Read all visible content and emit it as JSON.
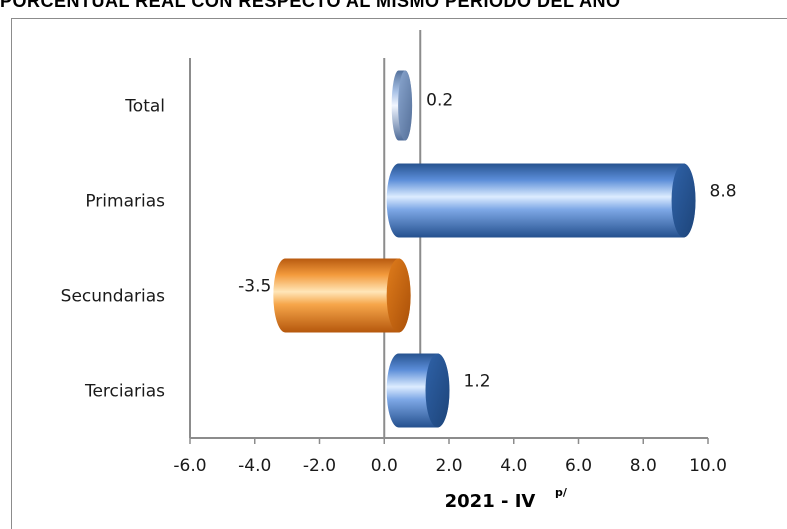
{
  "banner_text": "PORCENTUAL REAL CON RESPECTO AL MISMO PERIODO DEL AÑO",
  "colors": {
    "blue": "#3f74c4",
    "orange": "#f0902e",
    "total": "#7a9ed6"
  },
  "chart_data": {
    "type": "bar",
    "orientation": "horizontal",
    "categories": [
      "Total",
      "Primarias",
      "Secundarias",
      "Terciarias"
    ],
    "values": [
      0.2,
      8.8,
      -3.5,
      1.2
    ],
    "value_labels": [
      "0.2",
      "8.8",
      "-3.5",
      "1.2"
    ],
    "xlabel": "2021 - IV",
    "xlabel_sup": "p/",
    "xlim": [
      -6,
      10
    ],
    "xticks": [
      "-6.0",
      "-4.0",
      "-2.0",
      "0.0",
      "2.0",
      "4.0",
      "6.0",
      "8.0",
      "10.0"
    ],
    "xtick_values": [
      -6,
      -4,
      -2,
      0,
      2,
      4,
      6,
      8,
      10
    ],
    "grid": false,
    "legend": "none",
    "style": "3d-cylinder"
  }
}
